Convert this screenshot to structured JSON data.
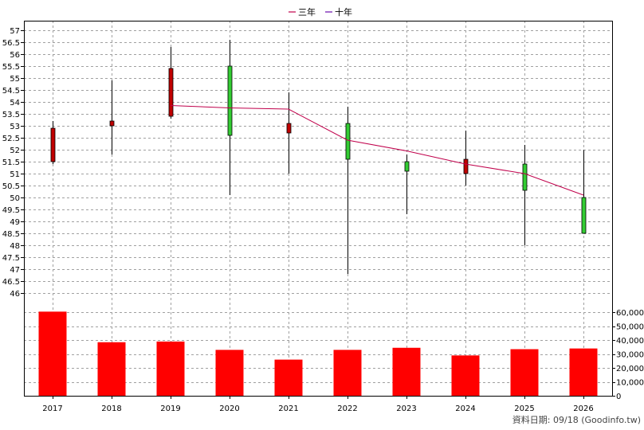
{
  "chart_data": {
    "type": "candlestick",
    "legend": [
      {
        "label": "三年",
        "color": "#c0004b"
      },
      {
        "label": "十年",
        "color": "#6a0dad"
      }
    ],
    "credit": "資料日期: 09/18  (Goodinfo.tw)",
    "x_categories": [
      "2017",
      "2018",
      "2019",
      "2020",
      "2021",
      "2022",
      "2023",
      "2024",
      "2025",
      "2026"
    ],
    "price_axis": {
      "ylim": [
        45.6,
        57.4
      ],
      "ticks": [
        46,
        46.5,
        47,
        47.5,
        48,
        48.5,
        49,
        49.5,
        50,
        50.5,
        51,
        51.5,
        52,
        52.5,
        53,
        53.5,
        54,
        54.5,
        55,
        55.5,
        56,
        56.5,
        57
      ],
      "tick_labels": [
        "46",
        "46.5",
        "47",
        "47.5",
        "48",
        "48.5",
        "49",
        "49.5",
        "50",
        "50.5",
        "51",
        "51.5",
        "52",
        "52.5",
        "53",
        "53.5",
        "54",
        "54.5",
        "55",
        "55.5",
        "56",
        "56.5",
        "57"
      ]
    },
    "candles": [
      {
        "year": "2017",
        "open": 51.5,
        "close": 52.9,
        "high": 53.2,
        "low": 51.4,
        "color": "#c00000"
      },
      {
        "year": "2018",
        "open": 53.0,
        "close": 53.2,
        "high": 54.9,
        "low": 51.8,
        "color": "#c00000"
      },
      {
        "year": "2019",
        "open": 53.4,
        "close": 55.4,
        "high": 56.3,
        "low": 53.3,
        "color": "#c00000"
      },
      {
        "year": "2020",
        "open": 55.5,
        "close": 52.6,
        "high": 56.6,
        "low": 50.1,
        "color": "#33cc33"
      },
      {
        "year": "2021",
        "open": 52.7,
        "close": 53.1,
        "high": 54.4,
        "low": 51.0,
        "color": "#c00000"
      },
      {
        "year": "2022",
        "open": 53.1,
        "close": 51.6,
        "high": 53.8,
        "low": 46.8,
        "color": "#33cc33"
      },
      {
        "year": "2023",
        "open": 51.5,
        "close": 51.1,
        "high": 51.8,
        "low": 49.3,
        "color": "#33cc33"
      },
      {
        "year": "2024",
        "open": 51.0,
        "close": 51.6,
        "high": 52.8,
        "low": 50.5,
        "color": "#c00000"
      },
      {
        "year": "2025",
        "open": 51.4,
        "close": 50.3,
        "high": 52.2,
        "low": 48.0,
        "color": "#33cc33"
      },
      {
        "year": "2026",
        "open": 50.0,
        "close": 48.5,
        "high": 52.0,
        "low": 48.5,
        "color": "#33cc33"
      }
    ],
    "line_series": [
      {
        "label_ref": "三年",
        "color": "#c0004b",
        "points": [
          {
            "year": "2019",
            "value": 53.85
          },
          {
            "year": "2020",
            "value": 53.75
          },
          {
            "year": "2021",
            "value": 53.7
          },
          {
            "year": "2022",
            "value": 52.4
          },
          {
            "year": "2023",
            "value": 51.95
          },
          {
            "year": "2024",
            "value": 51.4
          },
          {
            "year": "2025",
            "value": 51.0
          },
          {
            "year": "2026",
            "value": 50.1
          }
        ]
      }
    ],
    "volume_axis": {
      "ylim": [
        0,
        67000
      ],
      "ticks": [
        0,
        10000,
        20000,
        30000,
        40000,
        50000,
        60000
      ],
      "tick_labels": [
        "0",
        "10,000",
        "20,000",
        "30,000",
        "40,000",
        "50,000",
        "60,000"
      ]
    },
    "volume_color": "#ff0000",
    "volumes": [
      {
        "year": "2017",
        "value": 60500
      },
      {
        "year": "2018",
        "value": 38500
      },
      {
        "year": "2019",
        "value": 39000
      },
      {
        "year": "2020",
        "value": 33000
      },
      {
        "year": "2021",
        "value": 26000
      },
      {
        "year": "2022",
        "value": 33000
      },
      {
        "year": "2023",
        "value": 34500
      },
      {
        "year": "2024",
        "value": 29000
      },
      {
        "year": "2025",
        "value": 33500
      },
      {
        "year": "2026",
        "value": 34000
      }
    ]
  }
}
